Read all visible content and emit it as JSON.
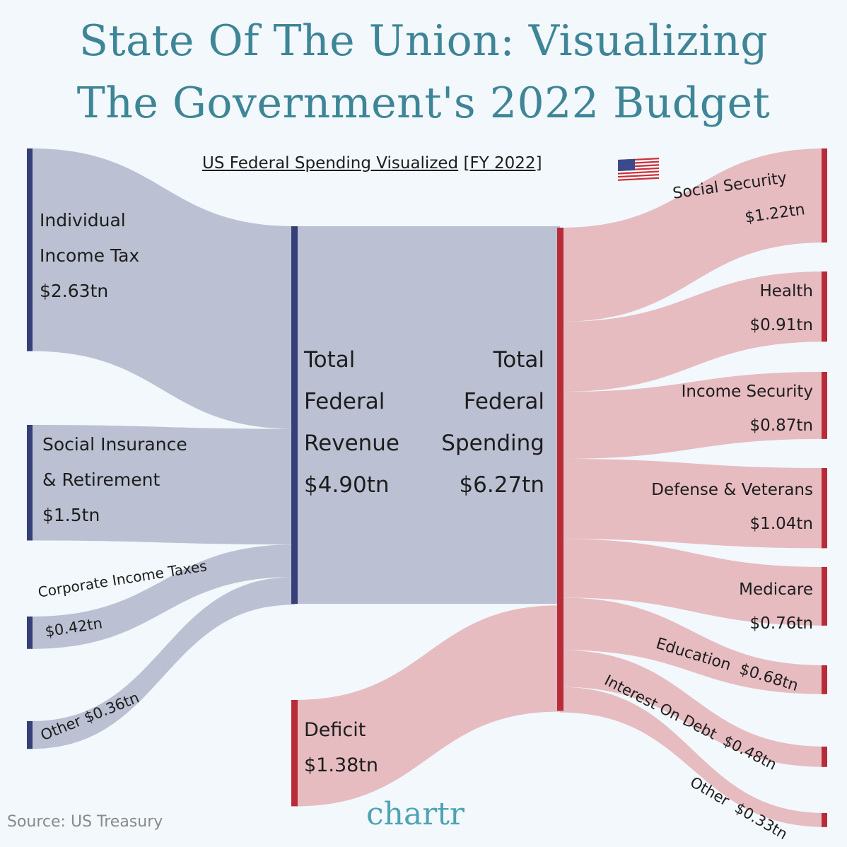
{
  "title_line1": "State Of The Union: Visualizing",
  "title_line2": "The Government's 2022 Budget",
  "subtitle": "US Federal Spending Visualized",
  "subtitle_bracket": "[FY 2022]",
  "source": "Source: US Treasury",
  "brand": "chartr",
  "colors": {
    "revenue_flow": "#bbc1d2",
    "spending_flow": "#e6bcc1",
    "revenue_bar": "#363f78",
    "spending_bar": "#b82b38",
    "title": "#3e8597",
    "brand": "#4da3b3"
  },
  "chart_data": {
    "type": "sankey",
    "sources": [
      {
        "label": [
          "Individual",
          "Income Tax"
        ],
        "value_label": "$2.63tn",
        "value": 2.63
      },
      {
        "label": [
          "Social Insurance",
          "& Retirement"
        ],
        "value_label": "$1.5tn",
        "value": 1.5
      },
      {
        "label": [
          "Corporate Income Taxes"
        ],
        "value_label": "$0.42tn",
        "value": 0.42
      },
      {
        "label": [
          "Other"
        ],
        "value_label": "$0.36tn",
        "value": 0.36
      }
    ],
    "revenue": {
      "label": [
        "Total",
        "Federal",
        "Revenue"
      ],
      "value_label": "$4.90tn",
      "value": 4.9
    },
    "deficit": {
      "label": [
        "Deficit"
      ],
      "value_label": "$1.38tn",
      "value": 1.38
    },
    "spending": {
      "label": [
        "Total",
        "Federal",
        "Spending"
      ],
      "value_label": "$6.27tn",
      "value": 6.27
    },
    "targets": [
      {
        "label": "Social Security",
        "value_label": "$1.22tn",
        "value": 1.22
      },
      {
        "label": "Health",
        "value_label": "$0.91tn",
        "value": 0.91
      },
      {
        "label": "Income Security",
        "value_label": "$0.87tn",
        "value": 0.87
      },
      {
        "label": "Defense & Veterans",
        "value_label": "$1.04tn",
        "value": 1.04
      },
      {
        "label": "Medicare",
        "value_label": "$0.76tn",
        "value": 0.76
      },
      {
        "label": "Education",
        "value_label": "$0.68tn",
        "value": 0.68
      },
      {
        "label": "Interest On Debt",
        "value_label": "$0.48tn",
        "value": 0.48
      },
      {
        "label": "Other",
        "value_label": "$0.33tn",
        "value": 0.33
      }
    ]
  }
}
